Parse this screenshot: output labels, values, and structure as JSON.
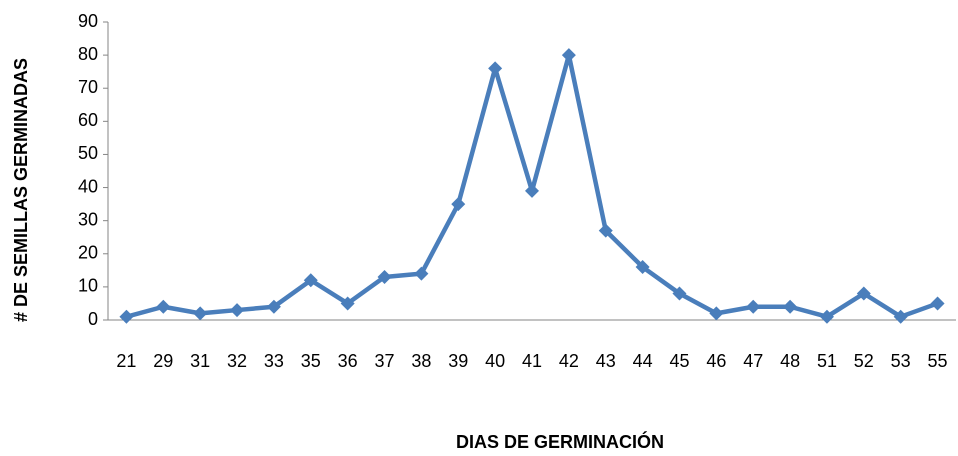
{
  "chart_data": {
    "type": "line",
    "x_label": "DIAS DE GERMINACIÓN",
    "y_label": "# DE SEMILLAS GERMINADAS",
    "categories": [
      "21",
      "29",
      "31",
      "32",
      "33",
      "35",
      "36",
      "37",
      "38",
      "39",
      "40",
      "41",
      "42",
      "43",
      "44",
      "45",
      "46",
      "47",
      "48",
      "51",
      "52",
      "53",
      "55"
    ],
    "series": [
      {
        "name": "Semillas germinadas",
        "color": "#4a7ebb",
        "values": [
          1,
          4,
          2,
          3,
          4,
          12,
          5,
          13,
          14,
          35,
          76,
          39,
          80,
          27,
          16,
          8,
          2,
          4,
          4,
          1,
          8,
          1,
          5
        ]
      }
    ],
    "ylim": [
      0,
      90
    ],
    "yticks": [
      0,
      10,
      20,
      30,
      40,
      50,
      60,
      70,
      80,
      90
    ],
    "grid": false
  }
}
